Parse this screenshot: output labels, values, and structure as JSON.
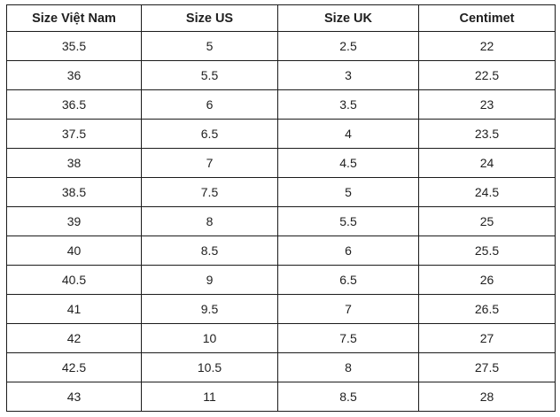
{
  "page": {
    "background_color": "#ffffff"
  },
  "table": {
    "border_color": "#1b1b1b",
    "text_color": "#1f1f1f",
    "columns": [
      "Size Việt Nam",
      "Size US",
      "Size UK",
      "Centimet"
    ],
    "rows": [
      [
        "35.5",
        "5",
        "2.5",
        "22"
      ],
      [
        "36",
        "5.5",
        "3",
        "22.5"
      ],
      [
        "36.5",
        "6",
        "3.5",
        "23"
      ],
      [
        "37.5",
        "6.5",
        "4",
        "23.5"
      ],
      [
        "38",
        "7",
        "4.5",
        "24"
      ],
      [
        "38.5",
        "7.5",
        "5",
        "24.5"
      ],
      [
        "39",
        "8",
        "5.5",
        "25"
      ],
      [
        "40",
        "8.5",
        "6",
        "25.5"
      ],
      [
        "40.5",
        "9",
        "6.5",
        "26"
      ],
      [
        "41",
        "9.5",
        "7",
        "26.5"
      ],
      [
        "42",
        "10",
        "7.5",
        "27"
      ],
      [
        "42.5",
        "10.5",
        "8",
        "27.5"
      ],
      [
        "43",
        "11",
        "8.5",
        "28"
      ]
    ]
  }
}
